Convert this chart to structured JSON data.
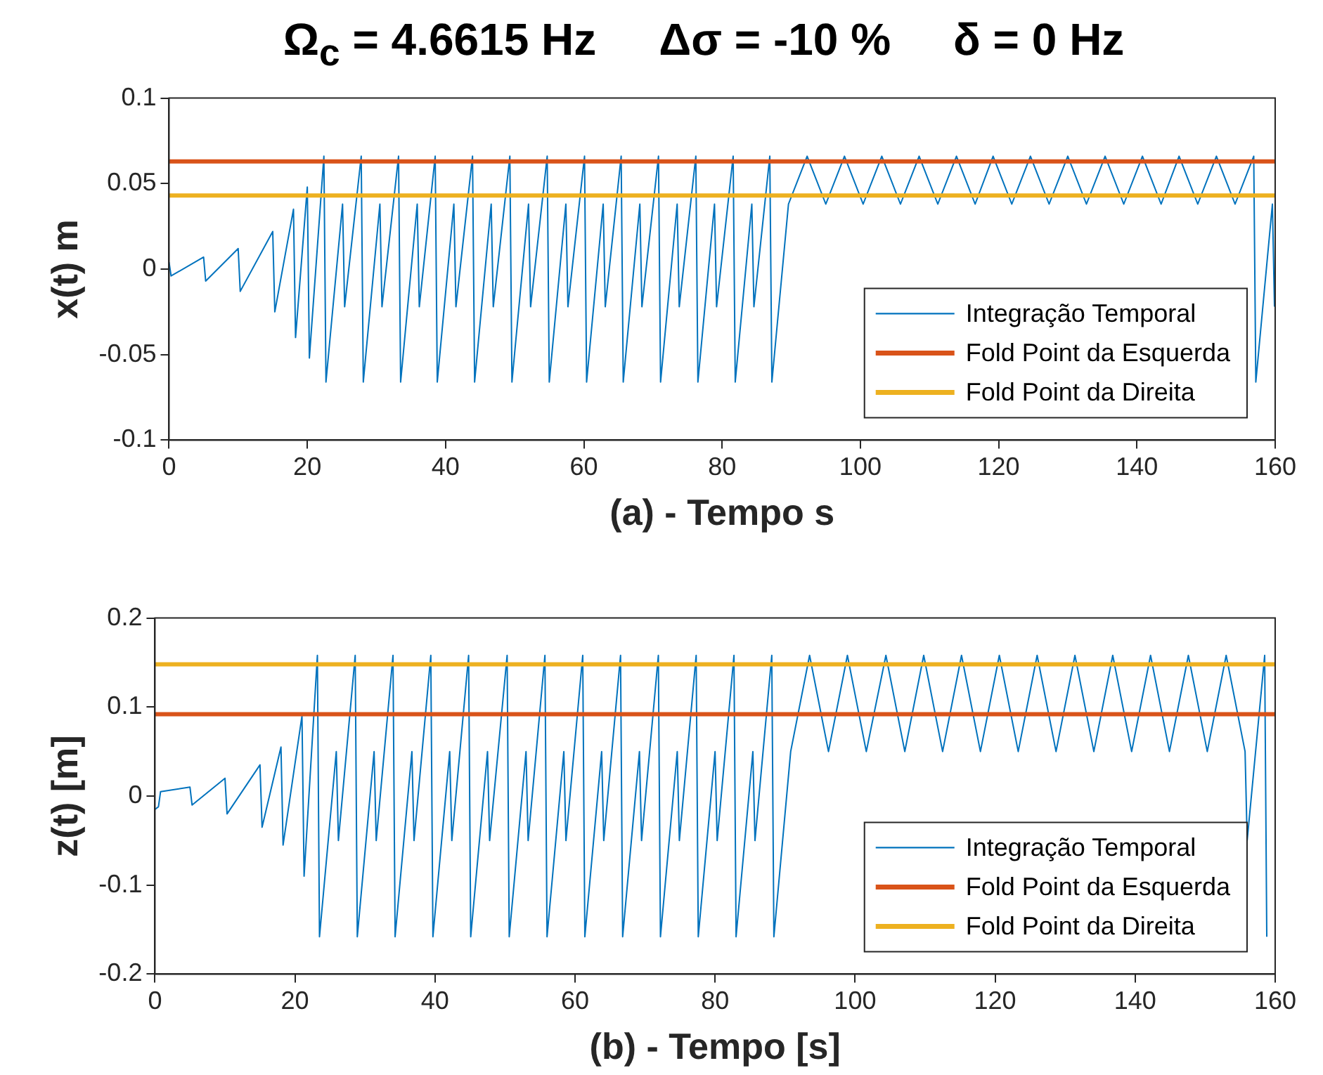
{
  "chart_data": [
    {
      "type": "line",
      "title": "Ω$_{c}$ = 4.6615 Hz     Δσ = -10 %     δ = 0 Hz",
      "xlabel": "(a) - Tempo s",
      "ylabel": "x(t) m",
      "xlim": [
        0,
        160
      ],
      "xticks": [
        0,
        20,
        40,
        60,
        80,
        100,
        120,
        140,
        160
      ],
      "ylim": [
        -0.1,
        0.1
      ],
      "yticks": [
        -0.1,
        -0.05,
        0,
        0.05,
        0.1
      ],
      "grid": false,
      "legend": "bottom right",
      "marker": "none",
      "line_style": "solid",
      "series": [
        {
          "name": "Integração Temporal",
          "color": "#0072bd",
          "x": [
            0,
            0.3,
            5,
            5.3,
            10,
            10.3,
            15,
            15.3,
            18,
            18.3,
            20,
            20.3,
            22.4,
            22.7,
            25.1,
            25.4,
            27.8,
            28.1,
            30.5,
            30.8,
            33.2,
            33.5,
            35.9,
            36.2,
            38.5,
            38.8,
            41.2,
            41.5,
            43.9,
            44.2,
            46.6,
            46.9,
            49.3,
            49.6,
            52,
            52.3,
            54.7,
            55,
            57.4,
            57.7,
            60.1,
            60.4,
            62.8,
            63.1,
            65.4,
            65.7,
            68.1,
            68.4,
            70.8,
            71.1,
            73.5,
            73.8,
            76.2,
            76.5,
            78.9,
            79.2,
            81.6,
            81.9,
            84.3,
            84.6,
            86.9,
            87.2,
            89.6,
            89.9,
            92.3,
            92.6,
            95,
            95.3,
            97.7,
            98,
            100.4,
            100.7,
            103.1,
            103.4,
            105.8,
            106.1,
            108.5,
            108.8,
            111.2,
            111.5,
            113.9,
            114.2,
            116.6,
            116.9,
            119.2,
            119.5,
            121.9,
            122.2,
            124.6,
            124.9,
            127.3,
            127.6,
            130,
            130.3,
            132.7,
            133,
            135.4,
            135.7,
            138.1,
            138.4,
            140.8,
            141.1,
            143.5,
            143.8,
            146.1,
            146.4,
            148.8,
            149.1,
            151.5,
            151.8,
            154.2,
            154.5,
            156.9,
            157.2,
            159.6,
            159.9
          ],
          "values": [
            0.004,
            -0.004,
            0.007,
            -0.007,
            0.012,
            -0.013,
            0.022,
            -0.025,
            0.035,
            -0.04,
            0.048,
            -0.052,
            0.066,
            -0.066,
            0.038,
            -0.022,
            0.066,
            -0.066,
            0.038,
            -0.022,
            0.066,
            -0.066,
            0.038,
            -0.022,
            0.066,
            -0.066,
            0.038,
            -0.022,
            0.066,
            -0.066,
            0.038,
            -0.022,
            0.066,
            -0.066,
            0.038,
            -0.022,
            0.066,
            -0.066,
            0.038,
            -0.022,
            0.066,
            -0.066,
            0.038,
            -0.022,
            0.066,
            -0.066,
            0.038,
            -0.022,
            0.066,
            -0.066,
            0.038,
            -0.022,
            0.066,
            -0.066,
            0.038,
            -0.022,
            0.066,
            -0.066,
            0.038,
            -0.022,
            0.066,
            -0.066,
            0.038,
            null,
            0.066,
            null,
            0.038,
            null,
            0.066,
            null,
            0.038,
            null,
            0.066,
            null,
            0.038,
            null,
            0.066,
            null,
            0.038,
            null,
            0.066,
            null,
            0.038,
            null,
            0.066,
            null,
            0.038,
            null,
            0.066,
            null,
            0.038,
            null,
            0.066,
            null,
            0.038,
            null,
            0.066,
            null,
            0.038,
            null,
            0.066,
            null,
            0.038,
            null,
            0.066,
            null,
            0.038,
            null,
            0.066,
            null,
            0.038,
            null,
            0.066,
            -0.066,
            0.038,
            -0.022
          ]
        },
        {
          "name": "Fold Point da Esquerda",
          "color": "#d95319",
          "x": [
            0,
            160
          ],
          "values": [
            0.063,
            0.063
          ]
        },
        {
          "name": "Fold Point da Direita",
          "color": "#edb120",
          "x": [
            0,
            160
          ],
          "values": [
            0.043,
            0.043
          ]
        }
      ]
    },
    {
      "type": "line",
      "xlabel": "(b) - Tempo [s]",
      "ylabel": "z(t) [m]",
      "xlim": [
        0,
        160
      ],
      "xticks": [
        0,
        20,
        40,
        60,
        80,
        100,
        120,
        140,
        160
      ],
      "ylim": [
        -0.2,
        0.2
      ],
      "yticks": [
        -0.2,
        -0.1,
        0,
        0.1,
        0.2
      ],
      "grid": false,
      "legend": "bottom right",
      "marker": "none",
      "line_style": "solid",
      "series": [
        {
          "name": "Integração Temporal",
          "color": "#0072bd",
          "x": [
            0,
            0.5,
            0.8,
            5,
            5.3,
            10,
            10.3,
            15,
            15.3,
            18,
            18.3,
            21,
            21.3,
            23.2,
            23.5,
            25.9,
            26.2,
            28.6,
            28.9,
            31.3,
            31.6,
            34,
            34.3,
            36.7,
            37,
            39.4,
            39.7,
            42.1,
            42.4,
            44.8,
            45.1,
            47.5,
            47.8,
            50.3,
            50.6,
            53,
            53.3,
            55.7,
            56,
            58.4,
            58.7,
            61.1,
            61.4,
            63.8,
            64.1,
            66.5,
            66.8,
            69.2,
            69.5,
            71.9,
            72.2,
            74.6,
            74.9,
            77.3,
            77.6,
            80,
            80.3,
            82.7,
            83,
            85.4,
            85.7,
            88.1,
            88.4,
            90.8,
            91.1,
            93.5,
            93.8,
            96.2,
            96.5,
            98.9,
            99.2,
            101.6,
            101.9,
            104.4,
            104.7,
            107.1,
            107.4,
            109.8,
            110.1,
            112.5,
            112.8,
            115.2,
            115.5,
            117.9,
            118.2,
            120.6,
            120.9,
            123.3,
            123.6,
            126,
            126.3,
            128.7,
            129,
            131.4,
            131.7,
            134.1,
            134.4,
            136.8,
            137.1,
            139.5,
            139.8,
            142.2,
            142.5,
            144.9,
            145.2,
            147.6,
            147.9,
            150.3,
            150.6,
            153,
            153.3,
            155.7,
            156,
            158.5,
            158.8
          ],
          "values": [
            -0.015,
            -0.012,
            0.005,
            0.01,
            -0.01,
            0.02,
            -0.02,
            0.035,
            -0.035,
            0.055,
            -0.055,
            0.09,
            -0.09,
            0.158,
            -0.158,
            0.05,
            -0.05,
            0.158,
            -0.158,
            0.05,
            -0.05,
            0.158,
            -0.158,
            0.05,
            -0.05,
            0.158,
            -0.158,
            0.05,
            -0.05,
            0.158,
            -0.158,
            0.05,
            -0.05,
            0.158,
            -0.158,
            0.05,
            -0.05,
            0.158,
            -0.158,
            0.05,
            -0.05,
            0.158,
            -0.158,
            0.05,
            -0.05,
            0.158,
            -0.158,
            0.05,
            -0.05,
            0.158,
            -0.158,
            0.05,
            -0.05,
            0.158,
            -0.158,
            0.05,
            -0.05,
            0.158,
            -0.158,
            0.05,
            -0.05,
            0.158,
            -0.158,
            0.05,
            null,
            0.158,
            null,
            0.05,
            null,
            0.158,
            null,
            0.05,
            null,
            0.158,
            null,
            0.05,
            null,
            0.158,
            null,
            0.05,
            null,
            0.158,
            null,
            0.05,
            null,
            0.158,
            null,
            0.05,
            null,
            0.158,
            null,
            0.05,
            null,
            0.158,
            null,
            0.05,
            null,
            0.158,
            null,
            0.05,
            null,
            0.158,
            null,
            0.05,
            null,
            0.158,
            null,
            0.05,
            null,
            0.158,
            null,
            0.05,
            -0.05,
            0.158,
            -0.158
          ]
        },
        {
          "name": "Fold Point da Esquerda",
          "color": "#d95319",
          "x": [
            0,
            160
          ],
          "values": [
            0.092,
            0.092
          ]
        },
        {
          "name": "Fold Point da Direita",
          "color": "#edb120",
          "x": [
            0,
            160
          ],
          "values": [
            0.148,
            0.148
          ]
        }
      ]
    }
  ]
}
